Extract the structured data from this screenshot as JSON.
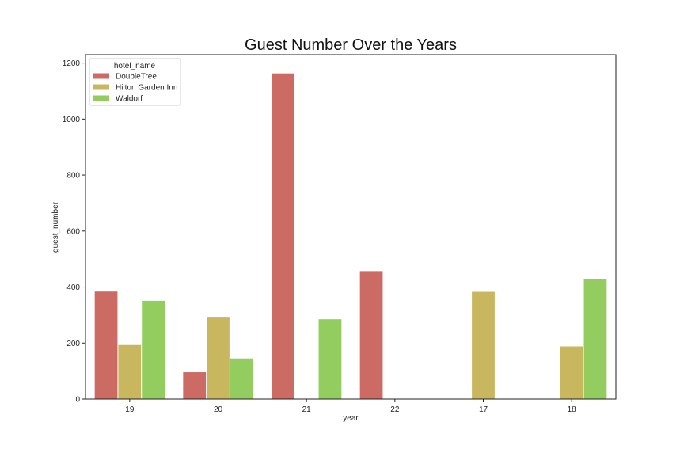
{
  "chart_data": {
    "type": "bar",
    "title": "Guest Number Over the Years",
    "xlabel": "year",
    "ylabel": "guest_number",
    "categories": [
      "19",
      "20",
      "21",
      "22",
      "17",
      "18"
    ],
    "ylim": [
      0,
      1230
    ],
    "yticks": [
      0,
      200,
      400,
      600,
      800,
      1000,
      1200
    ],
    "grid": false,
    "legend": {
      "title": "hotel_name",
      "placement": "top-left"
    },
    "series": [
      {
        "name": "DoubleTree",
        "color": "#cc6b64",
        "values": [
          384,
          96,
          1163,
          457,
          null,
          null
        ]
      },
      {
        "name": "Hilton Garden Inn",
        "color": "#c9b75f",
        "values": [
          193,
          291,
          null,
          null,
          383,
          188
        ]
      },
      {
        "name": "Waldorf",
        "color": "#93cd60",
        "values": [
          351,
          145,
          285,
          null,
          null,
          428
        ]
      }
    ]
  }
}
